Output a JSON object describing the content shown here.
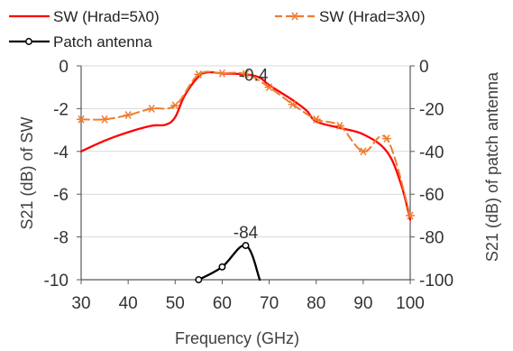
{
  "chart_data": {
    "type": "line",
    "title": "",
    "xlabel": "Frequency (GHz)",
    "ylabel_left": "S21 (dB) of SW",
    "ylabel_right": "S21 (dB) of patch antenna",
    "xlim": [
      30,
      100
    ],
    "ylim_left": [
      -10,
      0
    ],
    "ylim_right": [
      -100,
      0
    ],
    "x_ticks": [
      30,
      40,
      50,
      60,
      70,
      80,
      90,
      100
    ],
    "y_ticks_left": [
      0,
      -2,
      -4,
      -6,
      -8,
      -10
    ],
    "y_ticks_right": [
      0,
      -20,
      -40,
      -60,
      -80,
      -100
    ],
    "grid": "horizontal",
    "legend_position": "top",
    "series": [
      {
        "name": "SW (Hrad=5λ0)",
        "axis": "left",
        "color": "#ff0000",
        "style": "solid",
        "marker": "none",
        "x": [
          30,
          35,
          40,
          45,
          48,
          50,
          52,
          55,
          57,
          60,
          65,
          68,
          70,
          75,
          78,
          80,
          85,
          90,
          95,
          98,
          100
        ],
        "y": [
          -4.0,
          -3.5,
          -3.1,
          -2.8,
          -2.75,
          -2.4,
          -1.4,
          -0.5,
          -0.3,
          -0.35,
          -0.4,
          -0.55,
          -0.9,
          -1.6,
          -2.1,
          -2.6,
          -2.9,
          -3.2,
          -4.0,
          -5.5,
          -7.2
        ]
      },
      {
        "name": "SW (Hrad=3λ0)",
        "axis": "left",
        "color": "#ed7d31",
        "style": "dashed",
        "marker": "asterisk",
        "x": [
          30,
          35,
          40,
          45,
          50,
          55,
          60,
          65,
          70,
          75,
          80,
          85,
          90,
          95,
          100
        ],
        "y": [
          -2.5,
          -2.5,
          -2.3,
          -2.0,
          -1.85,
          -0.4,
          -0.35,
          -0.38,
          -1.0,
          -1.8,
          -2.5,
          -2.8,
          -4.0,
          -3.4,
          -7.0
        ]
      },
      {
        "name": "Patch antenna",
        "axis": "right",
        "color": "#000000",
        "style": "solid",
        "marker": "circle",
        "x": [
          55,
          60,
          65,
          68
        ],
        "y": [
          -100,
          -94,
          -84,
          -100
        ]
      }
    ],
    "annotations": [
      {
        "text": "-0.4",
        "x": 63.5,
        "y": -0.4,
        "axis": "left"
      },
      {
        "text": "-84",
        "x": 65,
        "y": -84,
        "axis": "right"
      }
    ]
  }
}
